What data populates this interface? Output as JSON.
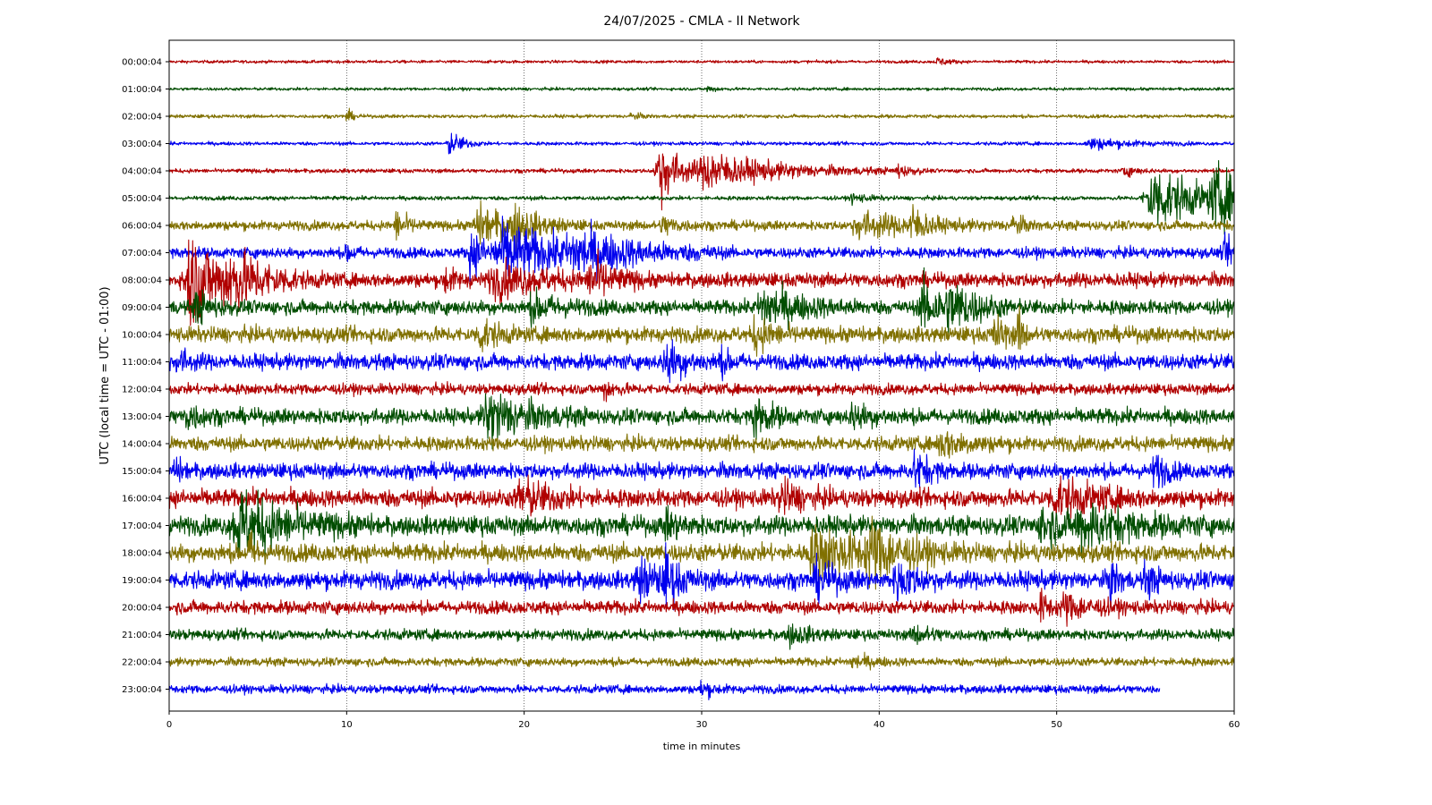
{
  "chart_data": {
    "type": "line",
    "title": "24/07/2025 - CMLA - II Network",
    "xlabel": "time in minutes",
    "ylabel": "UTC (local time = UTC - 01:00)",
    "xlim": [
      0,
      60
    ],
    "xticks": [
      0,
      10,
      20,
      30,
      40,
      50,
      60
    ],
    "x_grid": true,
    "grid_style": "dotted",
    "colors": [
      "#b00000",
      "#004d00",
      "#807000",
      "#0000ee"
    ],
    "series": [
      {
        "name": "00:00:04",
        "end_minute": 60,
        "noise": 0.25,
        "events": [
          {
            "t": 43.3,
            "amp": 0.8,
            "dur": 0.5
          }
        ]
      },
      {
        "name": "01:00:04",
        "end_minute": 60,
        "noise": 0.25,
        "events": [
          {
            "t": 30.3,
            "amp": 0.6,
            "dur": 0.5
          }
        ]
      },
      {
        "name": "02:00:04",
        "end_minute": 60,
        "noise": 0.3,
        "events": [
          {
            "t": 10.0,
            "amp": 1.2,
            "dur": 0.3
          },
          {
            "t": 26.0,
            "amp": 0.6,
            "dur": 0.5
          }
        ]
      },
      {
        "name": "03:00:04",
        "end_minute": 60,
        "noise": 0.3,
        "events": [
          {
            "t": 15.8,
            "amp": 2.2,
            "dur": 0.7
          },
          {
            "t": 52.0,
            "amp": 1.0,
            "dur": 2.0
          }
        ]
      },
      {
        "name": "04:00:04",
        "end_minute": 60,
        "noise": 0.35,
        "events": [
          {
            "t": 27.6,
            "amp": 6.0,
            "dur": 1.2
          },
          {
            "t": 30.5,
            "amp": 3.0,
            "dur": 4.0
          },
          {
            "t": 41.0,
            "amp": 1.0,
            "dur": 0.6
          },
          {
            "t": 53.8,
            "amp": 1.0,
            "dur": 0.6
          }
        ]
      },
      {
        "name": "05:00:04",
        "end_minute": 60,
        "noise": 0.35,
        "events": [
          {
            "t": 55.5,
            "amp": 5.5,
            "dur": 3.0
          },
          {
            "t": 59.0,
            "amp": 4.0,
            "dur": 2.0
          },
          {
            "t": 38.5,
            "amp": 0.8,
            "dur": 0.8
          }
        ]
      },
      {
        "name": "06:00:04",
        "end_minute": 60,
        "noise": 0.8,
        "events": [
          {
            "t": 12.8,
            "amp": 2.5,
            "dur": 0.6
          },
          {
            "t": 17.5,
            "amp": 3.0,
            "dur": 2.0
          },
          {
            "t": 19.5,
            "amp": 2.5,
            "dur": 1.0
          },
          {
            "t": 27.8,
            "amp": 1.5,
            "dur": 0.8
          },
          {
            "t": 39.0,
            "amp": 2.0,
            "dur": 3.0
          },
          {
            "t": 41.8,
            "amp": 3.0,
            "dur": 0.6
          },
          {
            "t": 47.5,
            "amp": 1.5,
            "dur": 0.6
          }
        ]
      },
      {
        "name": "07:00:04",
        "end_minute": 60,
        "noise": 0.9,
        "events": [
          {
            "t": 10.0,
            "amp": 1.5,
            "dur": 0.4
          },
          {
            "t": 17.0,
            "amp": 4.0,
            "dur": 0.8
          },
          {
            "t": 19.0,
            "amp": 4.5,
            "dur": 4.0
          },
          {
            "t": 23.0,
            "amp": 2.5,
            "dur": 3.0
          },
          {
            "t": 59.5,
            "amp": 2.0,
            "dur": 1.0
          }
        ]
      },
      {
        "name": "08:00:04",
        "end_minute": 60,
        "noise": 1.2,
        "events": [
          {
            "t": 1.2,
            "amp": 8.0,
            "dur": 2.0
          },
          {
            "t": 3.5,
            "amp": 3.0,
            "dur": 2.0
          },
          {
            "t": 15.5,
            "amp": 2.0,
            "dur": 0.6
          },
          {
            "t": 18.5,
            "amp": 2.5,
            "dur": 3.0
          },
          {
            "t": 23.8,
            "amp": 3.5,
            "dur": 1.0
          }
        ]
      },
      {
        "name": "09:00:04",
        "end_minute": 60,
        "noise": 1.2,
        "events": [
          {
            "t": 1.5,
            "amp": 2.5,
            "dur": 0.8
          },
          {
            "t": 20.5,
            "amp": 2.0,
            "dur": 1.5
          },
          {
            "t": 33.5,
            "amp": 3.5,
            "dur": 2.0
          },
          {
            "t": 42.5,
            "amp": 4.0,
            "dur": 1.5
          },
          {
            "t": 44.0,
            "amp": 3.0,
            "dur": 1.5
          }
        ]
      },
      {
        "name": "10:00:04",
        "end_minute": 60,
        "noise": 1.3,
        "events": [
          {
            "t": 17.5,
            "amp": 2.8,
            "dur": 0.8
          },
          {
            "t": 33.0,
            "amp": 2.5,
            "dur": 1.0
          },
          {
            "t": 46.5,
            "amp": 3.0,
            "dur": 0.6
          },
          {
            "t": 47.8,
            "amp": 4.0,
            "dur": 0.3
          }
        ]
      },
      {
        "name": "11:00:04",
        "end_minute": 60,
        "noise": 1.3,
        "events": [
          {
            "t": 0.5,
            "amp": 2.0,
            "dur": 0.6
          },
          {
            "t": 28.0,
            "amp": 3.5,
            "dur": 1.0
          },
          {
            "t": 31.0,
            "amp": 1.8,
            "dur": 0.6
          }
        ]
      },
      {
        "name": "12:00:04",
        "end_minute": 60,
        "noise": 0.9,
        "events": [
          {
            "t": 24.5,
            "amp": 1.8,
            "dur": 0.5
          }
        ]
      },
      {
        "name": "13:00:04",
        "end_minute": 60,
        "noise": 1.3,
        "events": [
          {
            "t": 1.0,
            "amp": 2.0,
            "dur": 0.8
          },
          {
            "t": 18.0,
            "amp": 4.5,
            "dur": 2.0
          },
          {
            "t": 33.0,
            "amp": 3.5,
            "dur": 0.8
          },
          {
            "t": 38.5,
            "amp": 1.8,
            "dur": 1.0
          }
        ]
      },
      {
        "name": "14:00:04",
        "end_minute": 60,
        "noise": 1.2,
        "events": [
          {
            "t": 43.5,
            "amp": 2.0,
            "dur": 1.5
          }
        ]
      },
      {
        "name": "15:00:04",
        "end_minute": 60,
        "noise": 1.3,
        "events": [
          {
            "t": 0.3,
            "amp": 2.0,
            "dur": 0.4
          },
          {
            "t": 42.0,
            "amp": 3.0,
            "dur": 0.8
          },
          {
            "t": 55.5,
            "amp": 3.0,
            "dur": 0.6
          }
        ]
      },
      {
        "name": "16:00:04",
        "end_minute": 60,
        "noise": 1.5,
        "events": [
          {
            "t": 19.8,
            "amp": 3.0,
            "dur": 1.5
          },
          {
            "t": 34.5,
            "amp": 2.5,
            "dur": 1.0
          },
          {
            "t": 50.0,
            "amp": 3.0,
            "dur": 2.0
          }
        ]
      },
      {
        "name": "17:00:04",
        "end_minute": 60,
        "noise": 1.6,
        "events": [
          {
            "t": 4.0,
            "amp": 5.5,
            "dur": 2.5
          },
          {
            "t": 28.0,
            "amp": 2.0,
            "dur": 0.8
          },
          {
            "t": 49.2,
            "amp": 3.5,
            "dur": 1.0
          },
          {
            "t": 51.5,
            "amp": 3.5,
            "dur": 2.5
          }
        ]
      },
      {
        "name": "18:00:04",
        "end_minute": 60,
        "noise": 1.5,
        "events": [
          {
            "t": 4.5,
            "amp": 3.5,
            "dur": 0.4
          },
          {
            "t": 36.5,
            "amp": 4.0,
            "dur": 3.0
          },
          {
            "t": 39.5,
            "amp": 4.0,
            "dur": 1.5
          }
        ]
      },
      {
        "name": "19:00:04",
        "end_minute": 60,
        "noise": 1.5,
        "events": [
          {
            "t": 26.5,
            "amp": 3.0,
            "dur": 1.5
          },
          {
            "t": 28.0,
            "amp": 4.0,
            "dur": 0.5
          },
          {
            "t": 36.5,
            "amp": 2.5,
            "dur": 1.0
          },
          {
            "t": 41.0,
            "amp": 3.0,
            "dur": 1.0
          },
          {
            "t": 53.0,
            "amp": 4.0,
            "dur": 0.4
          },
          {
            "t": 55.0,
            "amp": 2.5,
            "dur": 0.6
          }
        ]
      },
      {
        "name": "20:00:04",
        "end_minute": 60,
        "noise": 1.1,
        "events": [
          {
            "t": 49.0,
            "amp": 2.5,
            "dur": 0.6
          },
          {
            "t": 50.5,
            "amp": 2.0,
            "dur": 1.5
          }
        ]
      },
      {
        "name": "21:00:04",
        "end_minute": 60,
        "noise": 0.9,
        "events": [
          {
            "t": 35.0,
            "amp": 1.5,
            "dur": 1.0
          },
          {
            "t": 42.0,
            "amp": 1.3,
            "dur": 1.0
          }
        ]
      },
      {
        "name": "22:00:04",
        "end_minute": 60,
        "noise": 0.7,
        "events": [
          {
            "t": 38.5,
            "amp": 1.0,
            "dur": 1.0
          }
        ]
      },
      {
        "name": "23:00:04",
        "end_minute": 55.8,
        "noise": 0.7,
        "events": [
          {
            "t": 30.0,
            "amp": 1.3,
            "dur": 0.6
          }
        ]
      }
    ]
  }
}
